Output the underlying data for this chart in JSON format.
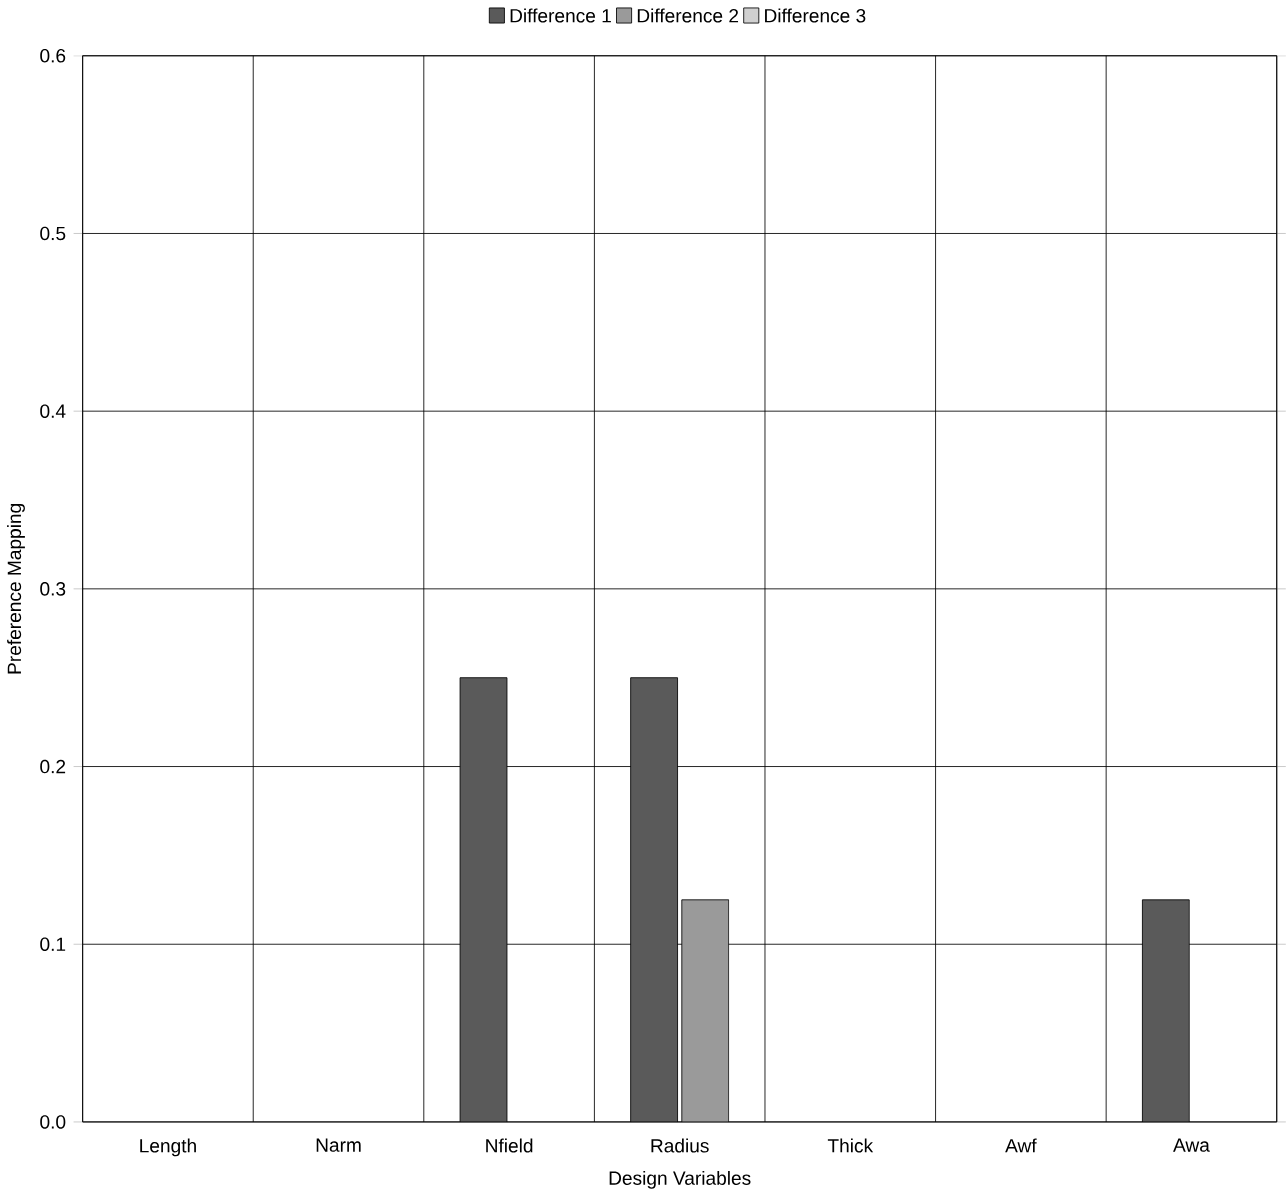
{
  "chart_data": {
    "type": "bar",
    "xlabel": "Design Variables",
    "ylabel": "Preference Mapping",
    "categories": [
      "Length",
      "Narm",
      "Nfield",
      "Radius",
      "Thick",
      "Awf",
      "Awa"
    ],
    "series": [
      {
        "name": "Difference 1",
        "color": "#5a5a5a",
        "values": [
          null,
          null,
          0.25,
          0.25,
          null,
          null,
          0.125
        ]
      },
      {
        "name": "Difference 2",
        "color": "#9a9a9a",
        "values": [
          null,
          null,
          null,
          0.125,
          null,
          null,
          null
        ]
      },
      {
        "name": "Difference 3",
        "color": "#d0d0d0",
        "values": [
          null,
          null,
          null,
          null,
          null,
          null,
          null
        ]
      }
    ],
    "ylim": [
      0,
      0.6
    ],
    "yticks": [
      {
        "value": 0,
        "label": "0.0"
      },
      {
        "value": 0.1,
        "label": "0.1"
      },
      {
        "value": 0.2,
        "label": "0.2"
      },
      {
        "value": 0.3,
        "label": "0.3"
      },
      {
        "value": 0.4,
        "label": "0.4"
      },
      {
        "value": 0.5,
        "label": "0.5"
      },
      {
        "value": 0.6,
        "label": "0.6"
      }
    ],
    "grid": true,
    "legend": "top"
  }
}
